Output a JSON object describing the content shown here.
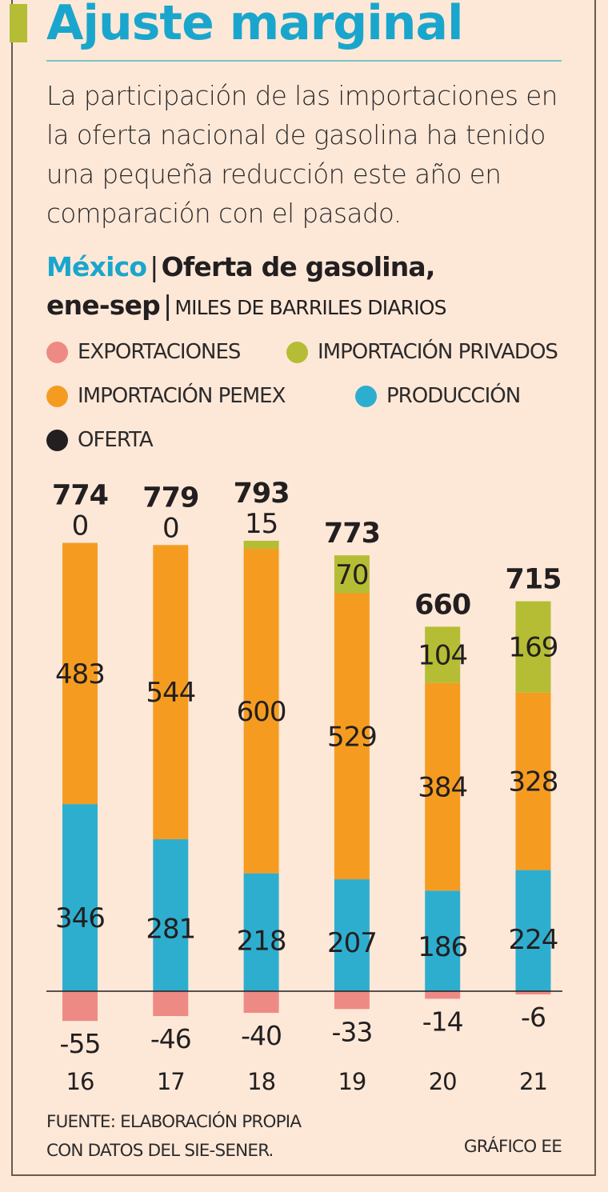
{
  "header": {
    "title": "Ajuste marginal",
    "dek": "La participación de las importaciones en la oferta nacional de gasolina ha tenido una pequeña reducción este año en comparación con el pasado."
  },
  "chart_header": {
    "country": "México",
    "separator": "|",
    "title": "Oferta de gasolina,",
    "period": "ene-sep",
    "units": "MILES DE BARRILES DIARIOS"
  },
  "legend": [
    {
      "label": "EXPORTACIONES",
      "color": "#ee8a84"
    },
    {
      "label": "IMPORTACIÓN PRIVADOS",
      "color": "#b5bd34"
    },
    {
      "label": "IMPORTACIÓN PEMEX",
      "color": "#f59c20"
    },
    {
      "label": "PRODUCCIÓN",
      "color": "#2eaecf"
    },
    {
      "label": "OFERTA",
      "color": "#231f20"
    }
  ],
  "chart_data": {
    "type": "bar",
    "stacked": true,
    "title": "Oferta de gasolina, ene-sep",
    "ylabel": "Miles de barriles diarios",
    "xlabel": "",
    "categories": [
      "16",
      "17",
      "18",
      "19",
      "20",
      "21"
    ],
    "series": [
      {
        "name": "PRODUCCIÓN",
        "color": "#2eaecf",
        "values": [
          346,
          281,
          218,
          207,
          186,
          224
        ]
      },
      {
        "name": "IMPORTACIÓN PEMEX",
        "color": "#f59c20",
        "values": [
          483,
          544,
          600,
          529,
          384,
          328
        ]
      },
      {
        "name": "IMPORTACIÓN PRIVADOS",
        "color": "#b5bd34",
        "values": [
          0,
          0,
          15,
          70,
          104,
          169
        ]
      },
      {
        "name": "EXPORTACIONES",
        "color": "#ee8a84",
        "values": [
          -55,
          -46,
          -40,
          -33,
          -14,
          -6
        ]
      }
    ],
    "totals": {
      "name": "OFERTA",
      "values": [
        774,
        779,
        793,
        773,
        660,
        715
      ]
    },
    "ylim": [
      -60,
      850
    ],
    "grid": false,
    "legend_position": "top"
  },
  "footer": {
    "source_line1": "FUENTE: ELABORACIÓN PROPIA",
    "source_line2": "CON DATOS DEL SIE-SENER.",
    "credit": "GRÁFICO EE"
  }
}
